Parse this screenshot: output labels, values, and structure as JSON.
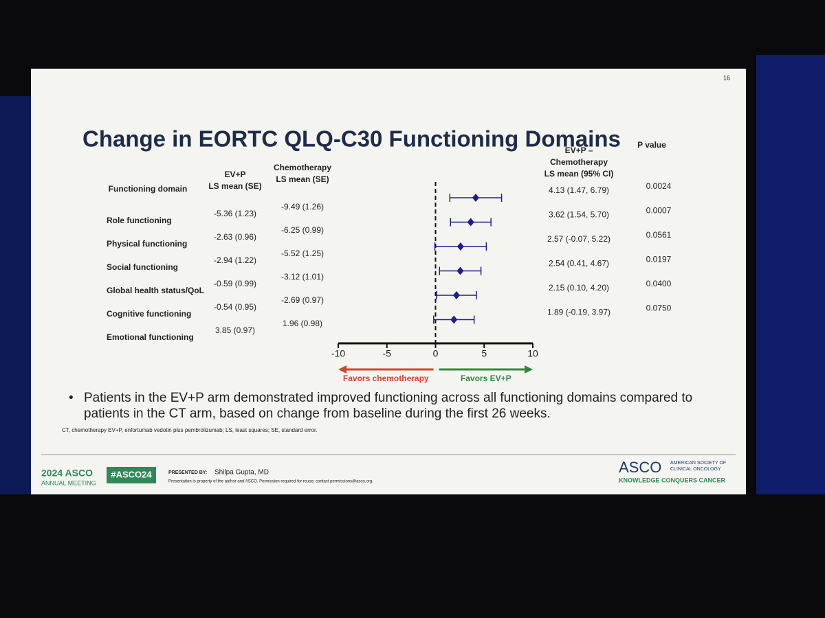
{
  "slide_number": "16",
  "chart_data": {
    "type": "forest",
    "title": "Change in EORTC QLQ-C30 Functioning Domains",
    "columns": {
      "domain": [
        "Functioning  domain"
      ],
      "evp": [
        "EV+P",
        "LS mean (SE)"
      ],
      "chemo": [
        "Chemotherapy",
        "LS mean (SE)"
      ],
      "diff": [
        "EV+P –",
        "Chemotherapy",
        "LS mean (95% CI)"
      ],
      "p": [
        "P value"
      ]
    },
    "categories": [
      "Role functioning",
      "Physical functioning",
      "Social functioning",
      "Global health status/QoL",
      "Cognitive functioning",
      "Emotional functioning"
    ],
    "evp_means": [
      "-5.36 (1.23)",
      "-2.63 (0.96)",
      "-2.94 (1.22)",
      "-0.59 (0.99)",
      "-0.54 (0.95)",
      "3.85 (0.97)"
    ],
    "chemo_means": [
      "-9.49 (1.26)",
      "-6.25 (0.99)",
      "-5.52 (1.25)",
      "-3.12 (1.01)",
      "-2.69 (0.97)",
      "1.96 (0.98)"
    ],
    "values": [
      4.13,
      3.62,
      2.57,
      2.54,
      2.15,
      1.89
    ],
    "ci_low": [
      1.47,
      1.54,
      -0.07,
      0.41,
      0.1,
      -0.19
    ],
    "ci_high": [
      6.79,
      5.7,
      5.22,
      4.67,
      4.2,
      3.97
    ],
    "value_labels": [
      "4.13 (1.47, 6.79)",
      "3.62 (1.54, 5.70)",
      "2.57 (-0.07, 5.22)",
      "2.54 (0.41, 4.67)",
      "2.15 (0.10, 4.20)",
      "1.89 (-0.19, 3.97)"
    ],
    "p_values": [
      "0.0024",
      "0.0007",
      "0.0561",
      "0.0197",
      "0.0400",
      "0.0750"
    ],
    "xlim": [
      -10,
      10
    ],
    "xticks": [
      -10,
      -5,
      0,
      5,
      10
    ],
    "color": "#1f1f8c",
    "arrows": [
      {
        "label": "Favors chemotherapy",
        "color": "#d6452a",
        "direction": "left"
      },
      {
        "label": "Favors EV+P",
        "color": "#2f8a3c",
        "direction": "right"
      }
    ]
  },
  "bullet": "Patients in the EV+P arm demonstrated improved functioning across all functioning domains compared to patients in the CT arm, based on change from baseline during the first 26 weeks.",
  "footnote": "CT, chemotherapy EV+P, enfortumab vedotin plus pembrolizumab; LS, least squares; SE, standard error.",
  "footer": {
    "meeting_year": "2024 ASCO",
    "meeting_name": "ANNUAL MEETING",
    "hashtag": "#ASCO24",
    "presented_by": "PRESENTED BY:",
    "presenter": "Shilpa Gupta, MD",
    "disclaimer": "Presentation is property of the author and ASCO. Permission required for reuse; contact permissions@asco.org.",
    "logo": "ASCO",
    "society": [
      "AMERICAN SOCIETY OF",
      "CLINICAL ONCOLOGY"
    ],
    "tagline": "KNOWLEDGE CONQUERS CANCER"
  }
}
